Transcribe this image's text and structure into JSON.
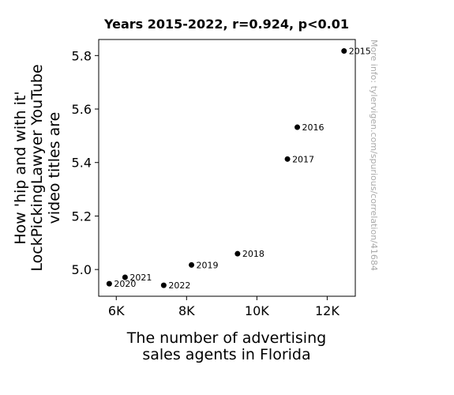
{
  "chart_data": {
    "type": "scatter",
    "title": "Years 2015-2022, r=0.924, p<0.01",
    "xlabel": [
      "The number of advertising",
      "sales agents in Florida"
    ],
    "ylabel": [
      "How 'hip and with it'",
      "LockPickingLawyer YouTube",
      "video titles are"
    ],
    "xlim": [
      5500,
      12800
    ],
    "ylim": [
      4.9,
      5.86
    ],
    "x_ticks": [
      {
        "value": 6000,
        "label": "6K"
      },
      {
        "value": 8000,
        "label": "8K"
      },
      {
        "value": 10000,
        "label": "10K"
      },
      {
        "value": 12000,
        "label": "12K"
      }
    ],
    "y_ticks": [
      {
        "value": 5.0,
        "label": "5.0"
      },
      {
        "value": 5.2,
        "label": "5.2"
      },
      {
        "value": 5.4,
        "label": "5.4"
      },
      {
        "value": 5.6,
        "label": "5.6"
      },
      {
        "value": 5.8,
        "label": "5.8"
      }
    ],
    "points": [
      {
        "label": "2015",
        "x": 12480,
        "y": 5.817
      },
      {
        "label": "2016",
        "x": 11150,
        "y": 5.532
      },
      {
        "label": "2017",
        "x": 10870,
        "y": 5.413
      },
      {
        "label": "2018",
        "x": 9450,
        "y": 5.059
      },
      {
        "label": "2019",
        "x": 8140,
        "y": 5.017
      },
      {
        "label": "2020",
        "x": 5800,
        "y": 4.947
      },
      {
        "label": "2021",
        "x": 6250,
        "y": 4.971
      },
      {
        "label": "2022",
        "x": 7350,
        "y": 4.941
      }
    ],
    "point_color": "#000000",
    "grid": false,
    "legend": "none",
    "watermark": "More info: tylervigen.com/spurious/correlation/41684"
  }
}
